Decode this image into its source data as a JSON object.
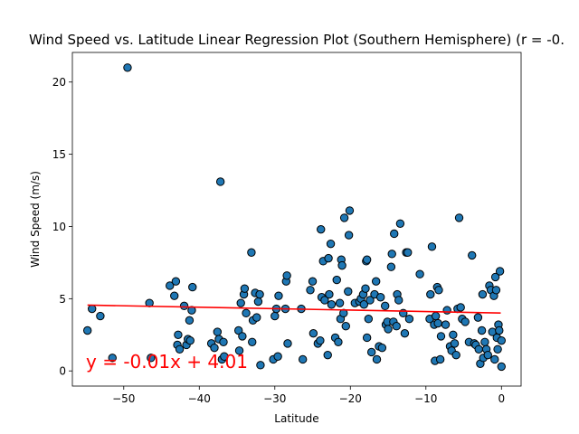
{
  "chart_data": {
    "type": "scatter",
    "title": "Wind Speed vs. Latitude Linear Regression Plot (Southern Hemisphere) (r = -0.",
    "xlabel": "Latitude",
    "ylabel": "Wind Speed (m/s)",
    "xlim": [
      -56.8,
      2.6
    ],
    "ylim": [
      -1.05,
      22.05
    ],
    "x_ticks": [
      -50,
      -40,
      -30,
      -20,
      -10,
      0
    ],
    "y_ticks": [
      0,
      5,
      10,
      15,
      20
    ],
    "x_tick_labels": [
      "−50",
      "−40",
      "−30",
      "−20",
      "−10",
      "0"
    ],
    "y_tick_labels": [
      "0",
      "5",
      "10",
      "15",
      "20"
    ],
    "grid": false,
    "regression": {
      "slope": -0.01,
      "intercept": 4.01,
      "x_range": [
        -54.8,
        -0.1
      ],
      "color": "#ff0000",
      "equation_label": "y = -0.01x + 4.01",
      "label_position": [
        -55,
        0.2
      ]
    },
    "series": [
      {
        "marker_color": "#1f77b4",
        "edge_color": "#000000",
        "points": [
          [
            -54.8,
            2.8
          ],
          [
            -54.2,
            4.3
          ],
          [
            -53.1,
            3.8
          ],
          [
            -51.5,
            0.9
          ],
          [
            -49.5,
            21.0
          ],
          [
            -46.6,
            4.7
          ],
          [
            -46.4,
            0.9
          ],
          [
            -43.9,
            5.9
          ],
          [
            -43.3,
            5.2
          ],
          [
            -43.1,
            6.2
          ],
          [
            -42.9,
            1.8
          ],
          [
            -42.8,
            2.5
          ],
          [
            -42.6,
            1.5
          ],
          [
            -42.0,
            4.5
          ],
          [
            -41.7,
            1.8
          ],
          [
            -41.5,
            2.2
          ],
          [
            -41.3,
            3.5
          ],
          [
            -41.2,
            2.1
          ],
          [
            -41.0,
            4.2
          ],
          [
            -40.9,
            5.8
          ],
          [
            -38.4,
            1.9
          ],
          [
            -38.0,
            1.6
          ],
          [
            -37.6,
            2.7
          ],
          [
            -37.4,
            2.2
          ],
          [
            -37.2,
            13.1
          ],
          [
            -37.0,
            0.8
          ],
          [
            -36.8,
            2.0
          ],
          [
            -36.7,
            1.0
          ],
          [
            -34.8,
            2.8
          ],
          [
            -34.7,
            1.4
          ],
          [
            -34.5,
            4.7
          ],
          [
            -34.3,
            2.4
          ],
          [
            -34.1,
            5.3
          ],
          [
            -34.0,
            5.7
          ],
          [
            -33.8,
            4.0
          ],
          [
            -33.1,
            8.2
          ],
          [
            -33.0,
            2.0
          ],
          [
            -32.9,
            3.5
          ],
          [
            -32.6,
            5.4
          ],
          [
            -32.4,
            3.7
          ],
          [
            -32.2,
            4.8
          ],
          [
            -32.0,
            5.3
          ],
          [
            -31.9,
            0.4
          ],
          [
            -30.2,
            0.8
          ],
          [
            -30.0,
            3.8
          ],
          [
            -29.8,
            4.3
          ],
          [
            -29.6,
            1.0
          ],
          [
            -29.5,
            5.2
          ],
          [
            -28.6,
            4.3
          ],
          [
            -28.5,
            6.2
          ],
          [
            -28.4,
            6.6
          ],
          [
            -28.3,
            1.9
          ],
          [
            -26.5,
            4.3
          ],
          [
            -26.3,
            0.8
          ],
          [
            -25.3,
            5.6
          ],
          [
            -25.0,
            6.2
          ],
          [
            -24.9,
            2.6
          ],
          [
            -24.3,
            1.9
          ],
          [
            -24.0,
            2.1
          ],
          [
            -23.9,
            9.8
          ],
          [
            -23.8,
            5.1
          ],
          [
            -23.6,
            7.6
          ],
          [
            -23.4,
            4.9
          ],
          [
            -23.0,
            1.1
          ],
          [
            -22.9,
            7.8
          ],
          [
            -22.8,
            5.3
          ],
          [
            -22.6,
            8.8
          ],
          [
            -22.5,
            4.6
          ],
          [
            -22.0,
            2.3
          ],
          [
            -21.8,
            6.3
          ],
          [
            -21.6,
            2.0
          ],
          [
            -21.4,
            4.7
          ],
          [
            -21.3,
            3.6
          ],
          [
            -21.2,
            7.7
          ],
          [
            -21.1,
            7.3
          ],
          [
            -20.9,
            4.0
          ],
          [
            -20.8,
            10.6
          ],
          [
            -20.6,
            3.1
          ],
          [
            -20.3,
            5.5
          ],
          [
            -20.2,
            9.4
          ],
          [
            -20.1,
            11.1
          ],
          [
            -19.4,
            4.7
          ],
          [
            -18.8,
            4.8
          ],
          [
            -18.6,
            5.0
          ],
          [
            -18.3,
            5.3
          ],
          [
            -18.2,
            4.6
          ],
          [
            -18.0,
            5.7
          ],
          [
            -17.9,
            7.6
          ],
          [
            -17.8,
            7.7
          ],
          [
            -17.8,
            2.3
          ],
          [
            -17.6,
            3.6
          ],
          [
            -17.4,
            4.9
          ],
          [
            -17.2,
            1.3
          ],
          [
            -16.8,
            5.3
          ],
          [
            -16.6,
            6.2
          ],
          [
            -16.5,
            0.8
          ],
          [
            -16.2,
            1.7
          ],
          [
            -16.0,
            5.1
          ],
          [
            -15.8,
            1.6
          ],
          [
            -15.4,
            4.5
          ],
          [
            -15.3,
            3.2
          ],
          [
            -15.1,
            3.4
          ],
          [
            -15.0,
            2.9
          ],
          [
            -14.6,
            7.2
          ],
          [
            -14.5,
            8.1
          ],
          [
            -14.3,
            3.4
          ],
          [
            -14.2,
            9.5
          ],
          [
            -13.9,
            3.1
          ],
          [
            -13.8,
            5.3
          ],
          [
            -13.6,
            4.9
          ],
          [
            -13.4,
            10.2
          ],
          [
            -13.0,
            4.0
          ],
          [
            -12.8,
            2.6
          ],
          [
            -12.6,
            8.2
          ],
          [
            -12.4,
            8.2
          ],
          [
            -12.2,
            3.6
          ],
          [
            -10.8,
            6.7
          ],
          [
            -9.5,
            3.6
          ],
          [
            -9.4,
            5.3
          ],
          [
            -9.2,
            8.6
          ],
          [
            -8.9,
            3.2
          ],
          [
            -8.8,
            0.7
          ],
          [
            -8.7,
            3.8
          ],
          [
            -8.5,
            5.8
          ],
          [
            -8.4,
            3.3
          ],
          [
            -8.3,
            5.6
          ],
          [
            -8.1,
            0.8
          ],
          [
            -8.0,
            2.4
          ],
          [
            -7.4,
            3.2
          ],
          [
            -7.2,
            4.2
          ],
          [
            -6.8,
            1.7
          ],
          [
            -6.6,
            1.4
          ],
          [
            -6.4,
            2.5
          ],
          [
            -6.2,
            1.9
          ],
          [
            -6.0,
            1.1
          ],
          [
            -5.8,
            4.3
          ],
          [
            -5.6,
            10.6
          ],
          [
            -5.4,
            4.4
          ],
          [
            -5.2,
            3.6
          ],
          [
            -4.8,
            3.4
          ],
          [
            -4.3,
            2.0
          ],
          [
            -3.9,
            8.0
          ],
          [
            -3.6,
            1.9
          ],
          [
            -3.4,
            1.8
          ],
          [
            -3.1,
            3.7
          ],
          [
            -3.0,
            1.5
          ],
          [
            -2.8,
            0.5
          ],
          [
            -2.6,
            2.8
          ],
          [
            -2.5,
            5.3
          ],
          [
            -2.4,
            0.9
          ],
          [
            -2.2,
            2.0
          ],
          [
            -2.0,
            1.5
          ],
          [
            -1.8,
            1.1
          ],
          [
            -1.6,
            5.9
          ],
          [
            -1.4,
            5.6
          ],
          [
            -1.2,
            2.7
          ],
          [
            -1.0,
            5.2
          ],
          [
            -0.9,
            0.8
          ],
          [
            -0.8,
            6.5
          ],
          [
            -0.7,
            5.6
          ],
          [
            -0.6,
            2.3
          ],
          [
            -0.5,
            1.5
          ],
          [
            -0.4,
            3.2
          ],
          [
            -0.3,
            2.8
          ],
          [
            -0.2,
            6.9
          ],
          [
            0.0,
            2.1
          ],
          [
            0.0,
            0.3
          ]
        ]
      }
    ]
  }
}
